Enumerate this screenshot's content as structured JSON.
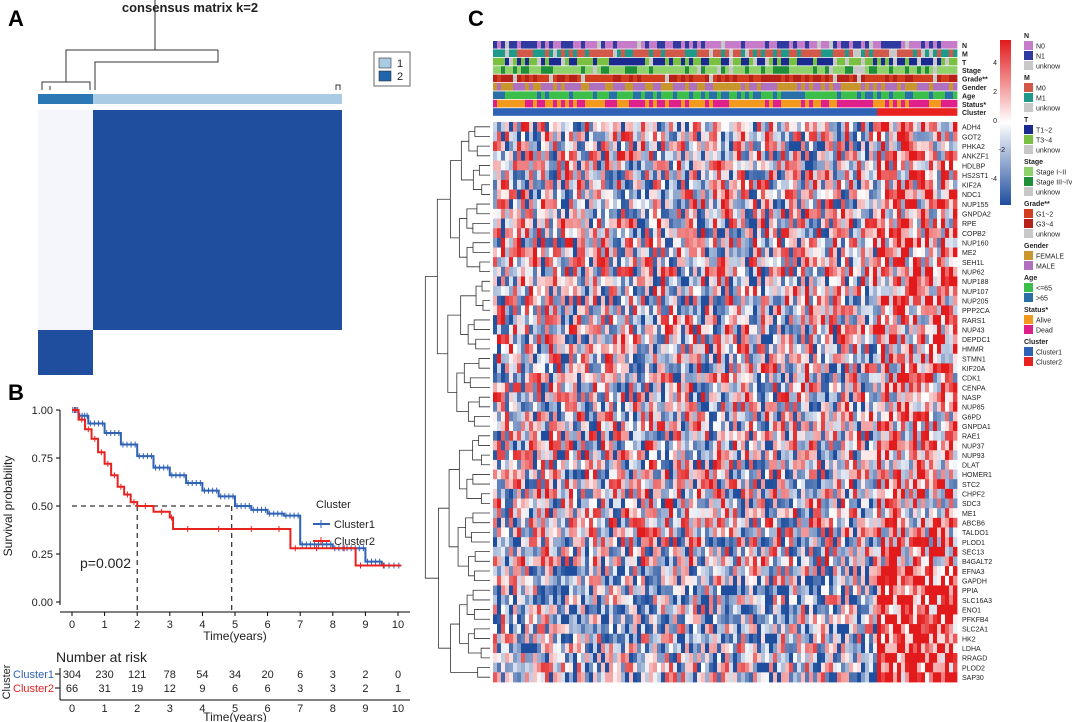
{
  "panels": {
    "a": "A",
    "b": "B",
    "c": "C"
  },
  "colors": {
    "heat_high": "#e31a1c",
    "heat_low": "#1f4e9e",
    "heat_mid": "#ffffff",
    "cluster1": "#2f62b5",
    "cluster2": "#e8221f",
    "consensus_dark": "#1f4e9e",
    "consensus_light": "#a9cbe3"
  },
  "chart_data": [
    {
      "type": "heatmap",
      "title": "consensus matrix k=2",
      "legend": [
        {
          "label": "1",
          "color": "#a9cbe3"
        },
        {
          "label": "2",
          "color": "#2166ac"
        }
      ],
      "cluster_bar": [
        "2",
        "1"
      ],
      "cluster_fractions": [
        0.18,
        0.82
      ]
    },
    {
      "type": "line",
      "ylabel": "Survival probability",
      "xlabel": "Time(years)",
      "legend_title": "Cluster",
      "x_ticks": [
        0,
        1,
        2,
        3,
        4,
        5,
        6,
        7,
        8,
        9,
        10
      ],
      "y_ticks": [
        "0.00",
        "0.25",
        "0.50",
        "0.75",
        "1.00"
      ],
      "xlim": [
        0,
        10
      ],
      "ylim": [
        0,
        1
      ],
      "pvalue": "p=0.002",
      "median_line_y": 0.5,
      "medians": [
        2.0,
        4.9
      ],
      "series": [
        {
          "name": "Cluster1",
          "color": "#2f62b5",
          "x": [
            0,
            0.2,
            0.5,
            1,
            1.5,
            2,
            2.5,
            3,
            3.5,
            4,
            4.5,
            5,
            5.5,
            6,
            6.5,
            7,
            7.5,
            8,
            8.5,
            9,
            9.5,
            10.1
          ],
          "y": [
            1.0,
            0.97,
            0.93,
            0.88,
            0.82,
            0.76,
            0.7,
            0.66,
            0.62,
            0.58,
            0.55,
            0.5,
            0.48,
            0.46,
            0.45,
            0.3,
            0.3,
            0.28,
            0.28,
            0.21,
            0.19,
            0.19
          ]
        },
        {
          "name": "Cluster2",
          "color": "#e8221f",
          "x": [
            0,
            0.2,
            0.4,
            0.6,
            0.8,
            1.0,
            1.2,
            1.4,
            1.6,
            1.8,
            2.0,
            2.5,
            3.0,
            3.1,
            4.0,
            5.0,
            6.0,
            6.7,
            7.0,
            8.0,
            8.7,
            9.0,
            10.1
          ],
          "y": [
            1.0,
            0.95,
            0.9,
            0.85,
            0.78,
            0.72,
            0.66,
            0.6,
            0.56,
            0.52,
            0.5,
            0.47,
            0.44,
            0.38,
            0.38,
            0.38,
            0.38,
            0.28,
            0.28,
            0.28,
            0.19,
            0.19,
            0.19
          ]
        }
      ],
      "risk_table": {
        "title": "Number at risk",
        "ylabel": "Cluster",
        "rows": [
          {
            "name": "Cluster1",
            "values": [
              "304",
              "230",
              "121",
              "78",
              "54",
              "34",
              "20",
              "6",
              "3",
              "2",
              "0"
            ]
          },
          {
            "name": "Cluster2",
            "values": [
              "66",
              "31",
              "19",
              "12",
              "9",
              "6",
              "6",
              "3",
              "3",
              "2",
              "1"
            ]
          }
        ],
        "xlabel": "Time(years)"
      }
    },
    {
      "type": "heatmap",
      "annotation_tracks": [
        "N",
        "M",
        "T",
        "Stage",
        "Grade**",
        "Gender",
        "Age",
        "Status*",
        "Cluster"
      ],
      "genes": [
        "ADH4",
        "GOT2",
        "PHKA2",
        "ANKZF1",
        "HDLBP",
        "HS2ST1",
        "KIF2A",
        "NDC1",
        "NUP155",
        "GNPDA2",
        "RPE",
        "COPB2",
        "NUP160",
        "ME2",
        "SEH1L",
        "NUP62",
        "NUP188",
        "NUP107",
        "NUP205",
        "PPP2CA",
        "RARS1",
        "NUP43",
        "DEPDC1",
        "HMMR",
        "STMN1",
        "KIF20A",
        "CDK1",
        "CENPA",
        "NASP",
        "NUP85",
        "G6PD",
        "GNPDA1",
        "RAE1",
        "NUP37",
        "NUP93",
        "DLAT",
        "HOMER1",
        "STC2",
        "CHPF2",
        "SDC3",
        "ME1",
        "ABCB6",
        "TALDO1",
        "PLOD1",
        "SEC13",
        "B4GALT2",
        "EFNA3",
        "GAPDH",
        "PPIA",
        "SLC16A3",
        "ENO1",
        "PFKFB4",
        "SLC2A1",
        "HK2",
        "LDHA",
        "RRAGD",
        "PLOD2",
        "SAP30"
      ],
      "colorbar_ticks": [
        "4",
        "2",
        "0",
        "-2",
        "-4"
      ],
      "legends": [
        {
          "title": "N",
          "items": [
            {
              "label": "N0",
              "color": "#c77cc9"
            },
            {
              "label": "N1",
              "color": "#2e3a9f"
            },
            {
              "label": "unknow",
              "color": "#c8c8c8"
            }
          ]
        },
        {
          "title": "M",
          "items": [
            {
              "label": "M0",
              "color": "#d2584a"
            },
            {
              "label": "M1",
              "color": "#1f9a8a"
            },
            {
              "label": "unknow",
              "color": "#c8c8c8"
            }
          ]
        },
        {
          "title": "T",
          "items": [
            {
              "label": "T1~2",
              "color": "#1a2a8f"
            },
            {
              "label": "T3~4",
              "color": "#7ac142"
            },
            {
              "label": "unknow",
              "color": "#c8c8c8"
            }
          ]
        },
        {
          "title": "Stage",
          "items": [
            {
              "label": "Stage I~II",
              "color": "#8fd16a"
            },
            {
              "label": "Stage III~IV",
              "color": "#1f8f3a"
            },
            {
              "label": "unknow",
              "color": "#c8c8c8"
            }
          ]
        },
        {
          "title": "Grade**",
          "items": [
            {
              "label": "G1~2",
              "color": "#d13d1e"
            },
            {
              "label": "G3~4",
              "color": "#b8211a"
            },
            {
              "label": "unknow",
              "color": "#c8c8c8"
            }
          ]
        },
        {
          "title": "Gender",
          "items": [
            {
              "label": "FEMALE",
              "color": "#c9962e"
            },
            {
              "label": "MALE",
              "color": "#b070c0"
            }
          ]
        },
        {
          "title": "Age",
          "items": [
            {
              "label": "<=65",
              "color": "#3bbf4a"
            },
            {
              "label": ">65",
              "color": "#2a6fa8"
            }
          ]
        },
        {
          "title": "Status*",
          "items": [
            {
              "label": "Alive",
              "color": "#f39a1e"
            },
            {
              "label": "Dead",
              "color": "#e0208a"
            }
          ]
        },
        {
          "title": "Cluster",
          "items": [
            {
              "label": "Cluster1",
              "color": "#2f62b5"
            },
            {
              "label": "Cluster2",
              "color": "#e8221f"
            }
          ]
        }
      ]
    }
  ]
}
